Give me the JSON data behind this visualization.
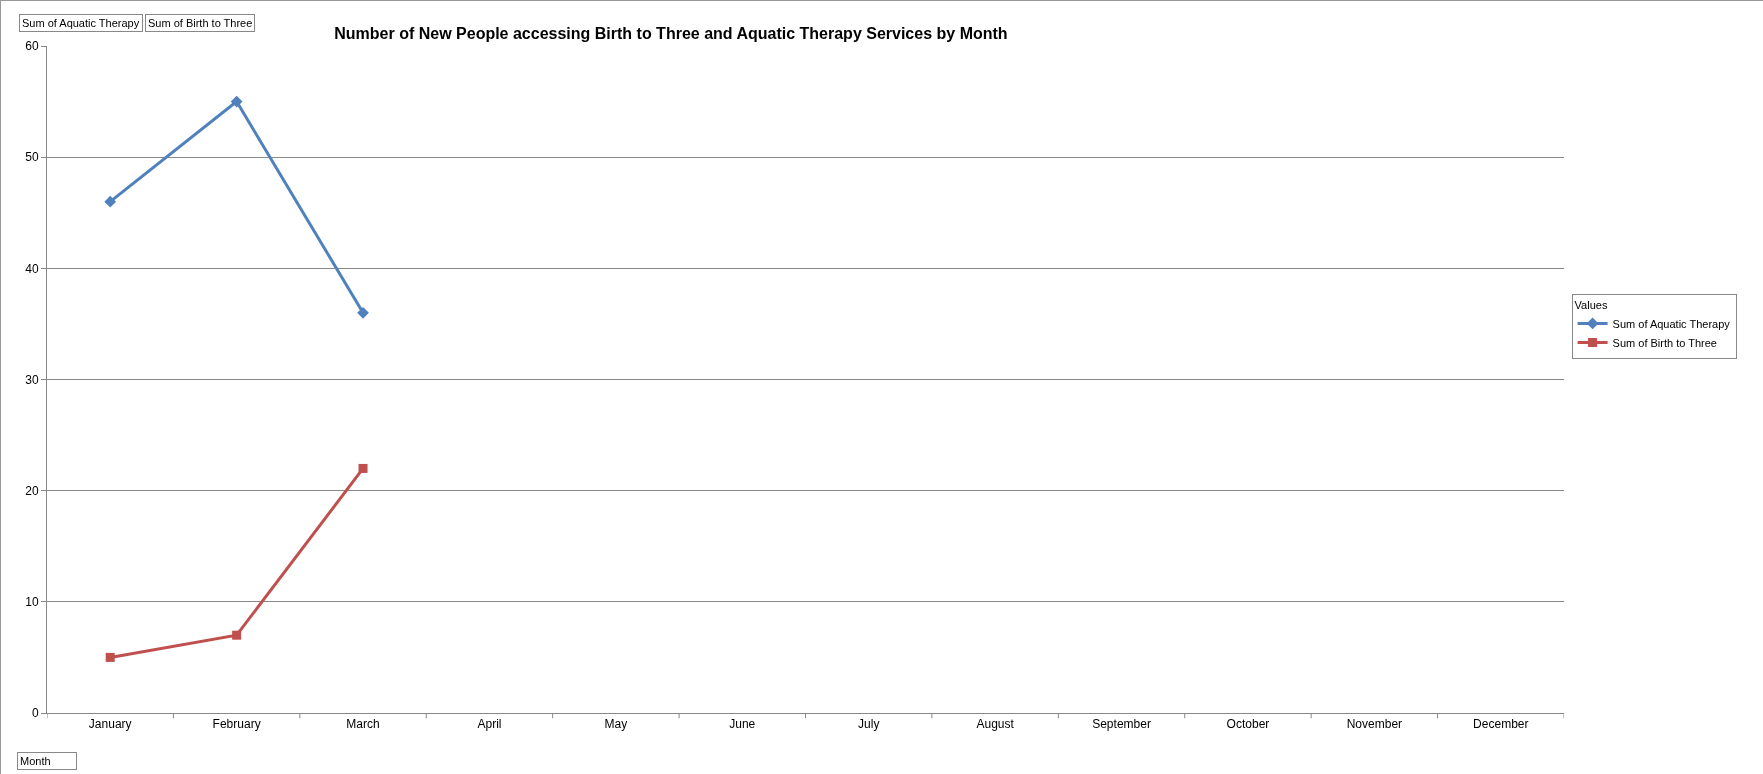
{
  "chart_data": {
    "type": "line",
    "title": "Number of New People accessing Birth to Three and Aquatic Therapy Services by Month",
    "categories": [
      "January",
      "February",
      "March",
      "April",
      "May",
      "June",
      "July",
      "August",
      "September",
      "October",
      "November",
      "December"
    ],
    "series": [
      {
        "name": "Sum of Aquatic Therapy",
        "color": "#4f81bd",
        "marker": "diamond",
        "values": [
          46,
          55,
          36,
          null,
          null,
          null,
          null,
          null,
          null,
          null,
          null,
          null
        ]
      },
      {
        "name": "Sum of Birth to Three",
        "color": "#c0504d",
        "marker": "square",
        "values": [
          5,
          7,
          22,
          null,
          null,
          null,
          null,
          null,
          null,
          null,
          null,
          null
        ]
      }
    ],
    "ylim": [
      0,
      60
    ],
    "yticks": [
      0,
      10,
      20,
      30,
      40,
      50,
      60
    ],
    "grid": "y",
    "legend": "right",
    "legend_title": "Values",
    "line_style": "solid",
    "annotations": [
      "Sum of Aquatic Therapy",
      "Sum of Birth to Three",
      "Month"
    ]
  }
}
